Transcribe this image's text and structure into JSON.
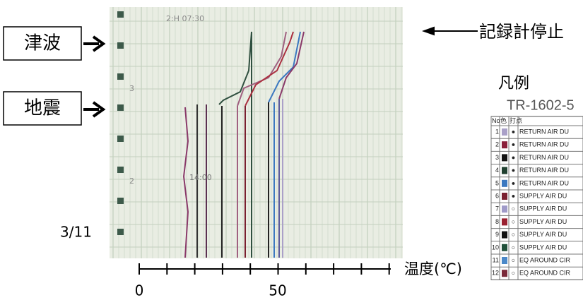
{
  "annotations": {
    "tsunami": "津波",
    "earthquake": "地震",
    "recorder_stop": "記録計停止",
    "date": "3/11"
  },
  "recorder": {
    "header_mark": "2:H 07:30",
    "time_mark": "14:00",
    "row_marks": [
      "3",
      "2"
    ]
  },
  "axis": {
    "label": "温度(℃)",
    "tick_labels": [
      "0",
      "50"
    ]
  },
  "legend": {
    "title": "凡例",
    "recorder_id": "TR-1602-5",
    "columns": [
      "No",
      "色",
      "打点"
    ],
    "rows": [
      {
        "no": "1",
        "color": "#a9a0c8",
        "symbol": "●",
        "name": "RETURN AIR DU"
      },
      {
        "no": "2",
        "color": "#8b1f3a",
        "symbol": "●",
        "name": "RETURN AIR DU"
      },
      {
        "no": "3",
        "color": "#111111",
        "symbol": "●",
        "name": "RETURN AIR DU"
      },
      {
        "no": "4",
        "color": "#1f4030",
        "symbol": "●",
        "name": "RETURN AIR DU"
      },
      {
        "no": "5",
        "color": "#3b78c0",
        "symbol": "●",
        "name": "RETURN AIR DU"
      },
      {
        "no": "6",
        "color": "#7a2030",
        "symbol": "●",
        "name": "SUPPLY AIR DU"
      },
      {
        "no": "7",
        "color": "#9f9ac8",
        "symbol": "○",
        "name": "SUPPLY AIR DU"
      },
      {
        "no": "8",
        "color": "#9a2030",
        "symbol": "○",
        "name": "SUPPLY AIR DU"
      },
      {
        "no": "9",
        "color": "#111111",
        "symbol": "○",
        "name": "SUPPLY AIR DU"
      },
      {
        "no": "10",
        "color": "#20503a",
        "symbol": "○",
        "name": "SUPPLY AIR DU"
      },
      {
        "no": "11",
        "color": "#4b88c8",
        "symbol": "○",
        "name": "EQ AROUND CIR"
      },
      {
        "no": "12",
        "color": "#7a2a3a",
        "symbol": "○",
        "name": "EQ AROUND CIR"
      }
    ]
  }
}
